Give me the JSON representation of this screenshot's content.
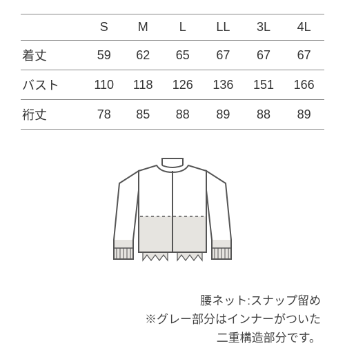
{
  "table": {
    "sizes": [
      "S",
      "M",
      "L",
      "LL",
      "3L",
      "4L"
    ],
    "rows": [
      {
        "label": "着丈",
        "values": [
          59,
          62,
          65,
          67,
          67,
          67
        ]
      },
      {
        "label": "バスト",
        "values": [
          110,
          118,
          126,
          136,
          151,
          166
        ]
      },
      {
        "label": "裄丈",
        "values": [
          78,
          85,
          88,
          89,
          88,
          89
        ]
      }
    ],
    "border_color": "#888888",
    "text_color": "#333333",
    "font_size": 18
  },
  "diagram": {
    "stroke": "#555555",
    "inner_fill": "#e6e4e0",
    "bg": "#ffffff",
    "width": 190,
    "height": 180
  },
  "captions": {
    "line1": "腰ネット:スナップ留め",
    "line2": "※グレー部分はインナーがついた",
    "line3": "二重構造部分です。",
    "font_size": 17,
    "color": "#444444"
  }
}
